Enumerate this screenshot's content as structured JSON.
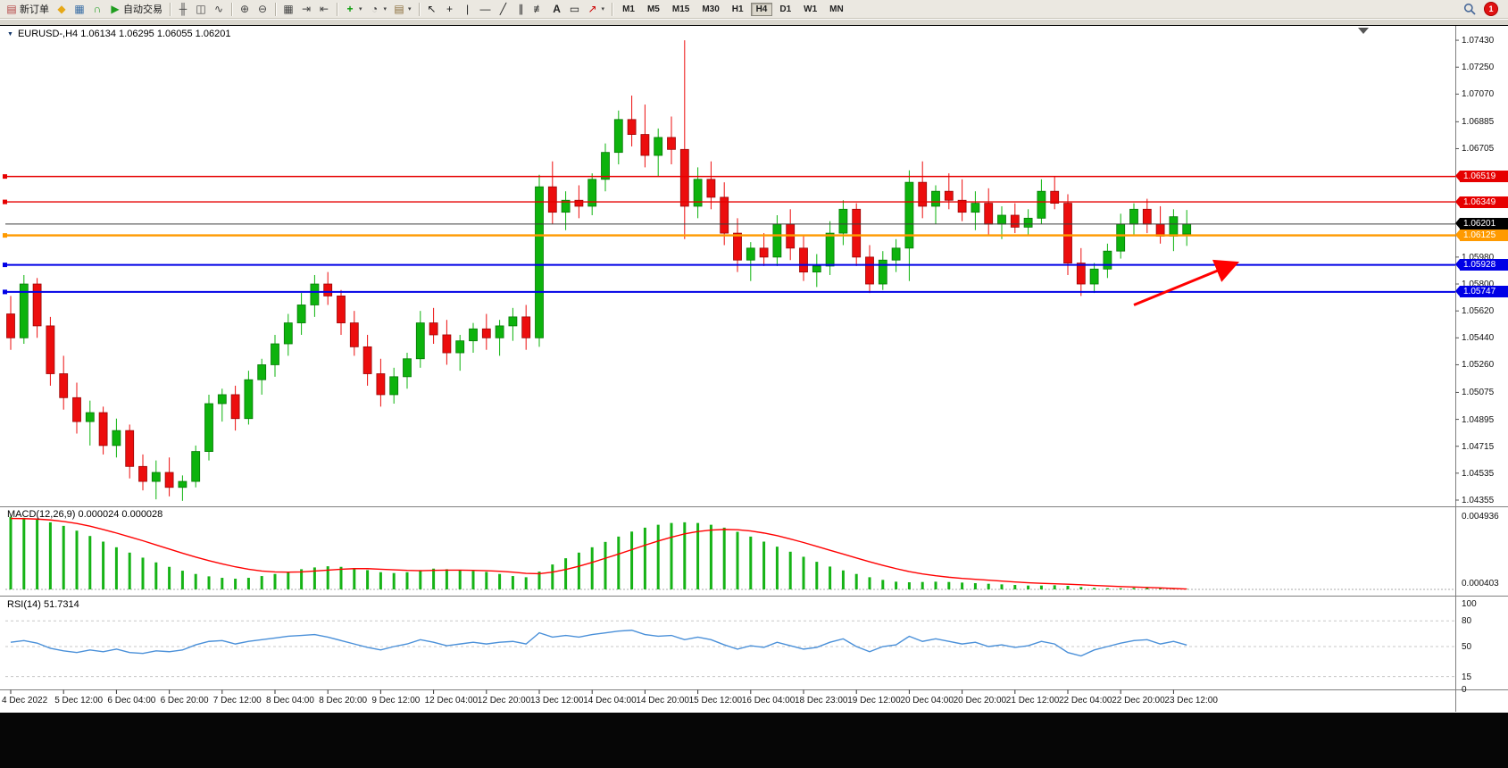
{
  "toolbar": {
    "groups": [
      {
        "name": "standard",
        "items": [
          {
            "name": "new-order",
            "label": "新订单",
            "icon": "new-order"
          },
          {
            "name": "metaeditor",
            "icon": "diamond"
          },
          {
            "name": "new-chart",
            "icon": "chart-window"
          },
          {
            "name": "market",
            "icon": "headphones"
          },
          {
            "name": "autotrading",
            "label": "自动交易",
            "icon": "play"
          }
        ]
      },
      {
        "name": "chart-types",
        "items": [
          {
            "name": "bar-chart",
            "icon": "bars"
          },
          {
            "name": "candlestick-chart",
            "icon": "candles"
          },
          {
            "name": "line-chart",
            "icon": "line"
          }
        ]
      },
      {
        "name": "zoom",
        "items": [
          {
            "name": "zoom-in",
            "icon": "zoom-in"
          },
          {
            "name": "zoom-out",
            "icon": "zoom-out"
          }
        ]
      },
      {
        "name": "windows",
        "items": [
          {
            "name": "tile-windows",
            "icon": "tile"
          },
          {
            "name": "auto-scroll",
            "icon": "auto-scroll"
          },
          {
            "name": "chart-shift",
            "icon": "chart-shift"
          }
        ]
      },
      {
        "name": "insert",
        "items": [
          {
            "name": "indicators",
            "icon": "indicator-plus",
            "dropdown": true
          },
          {
            "name": "periods",
            "icon": "clock",
            "dropdown": true
          },
          {
            "name": "templates",
            "icon": "template",
            "dropdown": true
          }
        ]
      },
      {
        "name": "objects",
        "items": [
          {
            "name": "cursor",
            "icon": "cursor"
          },
          {
            "name": "crosshair",
            "icon": "crosshair"
          },
          {
            "name": "vertical-line",
            "icon": "vertical-line"
          },
          {
            "name": "horizontal-line",
            "icon": "horizontal-line"
          },
          {
            "name": "trendline",
            "icon": "trendline"
          },
          {
            "name": "equidistant-channel",
            "icon": "channel"
          },
          {
            "name": "fibonacci",
            "icon": "fibonacci"
          },
          {
            "name": "text",
            "icon": "text"
          },
          {
            "name": "text-label",
            "icon": "label"
          },
          {
            "name": "arrows",
            "icon": "arrow",
            "dropdown": true
          }
        ]
      }
    ],
    "timeframes": [
      {
        "label": "M1"
      },
      {
        "label": "M5"
      },
      {
        "label": "M15"
      },
      {
        "label": "M30"
      },
      {
        "label": "H1"
      },
      {
        "label": "H4",
        "active": true
      },
      {
        "label": "D1"
      },
      {
        "label": "W1"
      },
      {
        "label": "MN"
      }
    ],
    "right": {
      "badge": "1"
    }
  },
  "chart": {
    "header_text": "EURUSD-,H4 1.06134 1.06295 1.06055 1.06201",
    "macd_label": "MACD(12,26,9) 0.000024 0.000028",
    "rsi_label": "RSI(14) 51.7314"
  },
  "chart_data": {
    "type": "candlestick",
    "symbol": "EURUSD-",
    "timeframe": "H4",
    "ohlc_header": {
      "open": 1.06134,
      "high": 1.06295,
      "low": 1.06055,
      "close": 1.06201
    },
    "price_axis": {
      "min": 1.04355,
      "max": 1.0743,
      "ticks": [
        1.0743,
        1.0725,
        1.0707,
        1.06885,
        1.06705,
        1.0598,
        1.058,
        1.0562,
        1.0544,
        1.0526,
        1.05075,
        1.04895,
        1.04715,
        1.04535,
        1.04355
      ]
    },
    "time_labels": [
      "4 Dec 2022",
      "5 Dec 12:00",
      "6 Dec 04:00",
      "6 Dec 20:00",
      "7 Dec 12:00",
      "8 Dec 04:00",
      "8 Dec 20:00",
      "9 Dec 12:00",
      "12 Dec 04:00",
      "12 Dec 20:00",
      "13 Dec 12:00",
      "14 Dec 04:00",
      "14 Dec 20:00",
      "15 Dec 12:00",
      "16 Dec 04:00",
      "18 Dec 23:00",
      "19 Dec 12:00",
      "20 Dec 04:00",
      "20 Dec 20:00",
      "21 Dec 12:00",
      "22 Dec 04:00",
      "22 Dec 20:00",
      "23 Dec 12:00"
    ],
    "candles": [
      [
        1.056,
        1.0572,
        1.0536,
        1.0544
      ],
      [
        1.0544,
        1.0586,
        1.054,
        1.058
      ],
      [
        1.058,
        1.0584,
        1.0544,
        1.0552
      ],
      [
        1.0552,
        1.0558,
        1.0512,
        1.052
      ],
      [
        1.052,
        1.0532,
        1.0496,
        1.0504
      ],
      [
        1.0504,
        1.0514,
        1.048,
        1.0488
      ],
      [
        1.0488,
        1.0502,
        1.0472,
        1.0494
      ],
      [
        1.0494,
        1.0498,
        1.0466,
        1.0472
      ],
      [
        1.0472,
        1.049,
        1.0464,
        1.0482
      ],
      [
        1.0482,
        1.0486,
        1.045,
        1.0458
      ],
      [
        1.0458,
        1.0466,
        1.0442,
        1.0448
      ],
      [
        1.0448,
        1.0462,
        1.0436,
        1.0454
      ],
      [
        1.0454,
        1.0464,
        1.0438,
        1.0444
      ],
      [
        1.0444,
        1.0452,
        1.0435,
        1.0448
      ],
      [
        1.0448,
        1.0472,
        1.0444,
        1.0468
      ],
      [
        1.0468,
        1.0506,
        1.0462,
        1.05
      ],
      [
        1.05,
        1.051,
        1.0488,
        1.0506
      ],
      [
        1.0506,
        1.0512,
        1.0482,
        1.049
      ],
      [
        1.049,
        1.0522,
        1.0486,
        1.0516
      ],
      [
        1.0516,
        1.053,
        1.0506,
        1.0526
      ],
      [
        1.0526,
        1.0546,
        1.0518,
        1.054
      ],
      [
        1.054,
        1.056,
        1.0532,
        1.0554
      ],
      [
        1.0554,
        1.0574,
        1.0546,
        1.0566
      ],
      [
        1.0566,
        1.0586,
        1.0558,
        1.058
      ],
      [
        1.058,
        1.0588,
        1.0566,
        1.0572
      ],
      [
        1.0572,
        1.0576,
        1.0546,
        1.0554
      ],
      [
        1.0554,
        1.0562,
        1.0532,
        1.0538
      ],
      [
        1.0538,
        1.0546,
        1.0512,
        1.052
      ],
      [
        1.052,
        1.053,
        1.0498,
        1.0506
      ],
      [
        1.0506,
        1.0524,
        1.05,
        1.0518
      ],
      [
        1.0518,
        1.0534,
        1.051,
        1.053
      ],
      [
        1.053,
        1.0562,
        1.0524,
        1.0554
      ],
      [
        1.0554,
        1.0564,
        1.054,
        1.0546
      ],
      [
        1.0546,
        1.0556,
        1.0526,
        1.0534
      ],
      [
        1.0534,
        1.0546,
        1.0522,
        1.0542
      ],
      [
        1.0542,
        1.0554,
        1.0534,
        1.055
      ],
      [
        1.055,
        1.056,
        1.0536,
        1.0544
      ],
      [
        1.0544,
        1.0556,
        1.0532,
        1.0552
      ],
      [
        1.0552,
        1.0564,
        1.0542,
        1.0558
      ],
      [
        1.0558,
        1.0566,
        1.0536,
        1.0544
      ],
      [
        1.0544,
        1.0653,
        1.0538,
        1.0645
      ],
      [
        1.0645,
        1.0662,
        1.062,
        1.0628
      ],
      [
        1.0628,
        1.0642,
        1.0616,
        1.0636
      ],
      [
        1.0636,
        1.0646,
        1.0624,
        1.0632
      ],
      [
        1.0632,
        1.0654,
        1.0626,
        1.065
      ],
      [
        1.065,
        1.0674,
        1.0642,
        1.0668
      ],
      [
        1.0668,
        1.0696,
        1.066,
        1.069
      ],
      [
        1.069,
        1.0706,
        1.0672,
        1.068
      ],
      [
        1.068,
        1.07,
        1.0658,
        1.0666
      ],
      [
        1.0666,
        1.0684,
        1.0652,
        1.0678
      ],
      [
        1.0678,
        1.0692,
        1.066,
        1.067
      ],
      [
        1.067,
        1.0743,
        1.061,
        1.0632
      ],
      [
        1.0632,
        1.0658,
        1.0624,
        1.065
      ],
      [
        1.065,
        1.0662,
        1.063,
        1.0638
      ],
      [
        1.0638,
        1.0648,
        1.0606,
        1.0614
      ],
      [
        1.0614,
        1.0624,
        1.0588,
        1.0596
      ],
      [
        1.0596,
        1.0608,
        1.0582,
        1.0604
      ],
      [
        1.0604,
        1.0614,
        1.0592,
        1.0598
      ],
      [
        1.0598,
        1.0626,
        1.0592,
        1.062
      ],
      [
        1.062,
        1.063,
        1.0596,
        1.0604
      ],
      [
        1.0604,
        1.0612,
        1.0582,
        1.0588
      ],
      [
        1.0588,
        1.06,
        1.0578,
        1.0592
      ],
      [
        1.0592,
        1.0622,
        1.0586,
        1.0614
      ],
      [
        1.0614,
        1.0636,
        1.0606,
        1.063
      ],
      [
        1.063,
        1.0634,
        1.0592,
        1.0598
      ],
      [
        1.0598,
        1.0606,
        1.0574,
        1.058
      ],
      [
        1.058,
        1.0602,
        1.0576,
        1.0596
      ],
      [
        1.0596,
        1.061,
        1.0588,
        1.0604
      ],
      [
        1.0604,
        1.0656,
        1.0582,
        1.0648
      ],
      [
        1.0648,
        1.0662,
        1.0624,
        1.0632
      ],
      [
        1.0632,
        1.0646,
        1.062,
        1.0642
      ],
      [
        1.0642,
        1.0654,
        1.063,
        1.0636
      ],
      [
        1.0636,
        1.065,
        1.0622,
        1.0628
      ],
      [
        1.0628,
        1.0642,
        1.0616,
        1.0634
      ],
      [
        1.0634,
        1.0644,
        1.0612,
        1.062
      ],
      [
        1.062,
        1.0632,
        1.061,
        1.0626
      ],
      [
        1.0626,
        1.0634,
        1.0614,
        1.0618
      ],
      [
        1.0618,
        1.063,
        1.0612,
        1.0624
      ],
      [
        1.0624,
        1.065,
        1.062,
        1.0642
      ],
      [
        1.0642,
        1.0652,
        1.063,
        1.0634
      ],
      [
        1.0634,
        1.064,
        1.0586,
        1.0594
      ],
      [
        1.0594,
        1.0604,
        1.0572,
        1.058
      ],
      [
        1.058,
        1.0594,
        1.0574,
        1.059
      ],
      [
        1.059,
        1.0607,
        1.0584,
        1.0602
      ],
      [
        1.0602,
        1.0627,
        1.0597,
        1.062
      ],
      [
        1.062,
        1.0634,
        1.0612,
        1.063
      ],
      [
        1.063,
        1.0637,
        1.0614,
        1.062
      ],
      [
        1.062,
        1.0632,
        1.0607,
        1.0612
      ],
      [
        1.0612,
        1.063,
        1.0602,
        1.0625
      ],
      [
        1.06134,
        1.06295,
        1.06055,
        1.06201
      ]
    ],
    "hlines": [
      {
        "name": "resistance-1",
        "price": 1.06519,
        "color": "#e60000",
        "width": 1.4
      },
      {
        "name": "resistance-2",
        "price": 1.06349,
        "color": "#e60000",
        "width": 1.4
      },
      {
        "name": "pivot",
        "price": 1.06125,
        "color": "#ff9a00",
        "width": 2.4
      },
      {
        "name": "support-1",
        "price": 1.05928,
        "color": "#0000e6",
        "width": 2
      },
      {
        "name": "support-2",
        "price": 1.05747,
        "color": "#0000e6",
        "width": 2
      }
    ],
    "current_price": {
      "value": 1.06201,
      "line_color": "#3c3c3c",
      "box_color": "#000000"
    },
    "annotations": [
      {
        "type": "arrow",
        "from_candle": 85,
        "from_price": 1.0566,
        "to_candle": 92.6,
        "to_price": 1.05935,
        "color": "#ff0000"
      }
    ],
    "indicators": {
      "macd": {
        "name": "MACD",
        "params": [
          12,
          26,
          9
        ],
        "value_main": 2.4e-05,
        "value_signal": 2.8e-05,
        "scale_max": 0.004936,
        "scale_mid": 0.000403,
        "histogram": [
          0.0049,
          0.00482,
          0.0047,
          0.00452,
          0.00428,
          0.00396,
          0.0036,
          0.00322,
          0.00284,
          0.00248,
          0.00214,
          0.00182,
          0.00152,
          0.00126,
          0.00104,
          0.00088,
          0.00078,
          0.00072,
          0.00078,
          0.0009,
          0.00104,
          0.0012,
          0.00136,
          0.00148,
          0.00156,
          0.00152,
          0.00144,
          0.0013,
          0.00116,
          0.0011,
          0.00116,
          0.0013,
          0.0014,
          0.00136,
          0.00128,
          0.00124,
          0.00118,
          0.00104,
          0.0009,
          0.00082,
          0.0012,
          0.00168,
          0.0021,
          0.00248,
          0.00284,
          0.0032,
          0.00356,
          0.0039,
          0.00416,
          0.00436,
          0.00448,
          0.00452,
          0.00448,
          0.00436,
          0.00416,
          0.00388,
          0.00356,
          0.00322,
          0.00288,
          0.00254,
          0.0022,
          0.00186,
          0.00154,
          0.00128,
          0.00104,
          0.00082,
          0.00064,
          0.00052,
          0.00048,
          0.0005,
          0.00052,
          0.0005,
          0.00046,
          0.00042,
          0.00038,
          0.00034,
          0.0003,
          0.00026,
          0.00026,
          0.00028,
          0.00024,
          0.00016,
          0.0001,
          8e-05,
          8e-05,
          0.0001,
          0.00012,
          0.0001,
          6e-05,
          2.4e-05
        ],
        "signal": [
          0.00478,
          0.00477,
          0.00474,
          0.00468,
          0.00458,
          0.00444,
          0.00426,
          0.00404,
          0.0038,
          0.00354,
          0.00328,
          0.003,
          0.00272,
          0.00244,
          0.00218,
          0.00194,
          0.00172,
          0.00152,
          0.00136,
          0.00124,
          0.00118,
          0.00116,
          0.00118,
          0.00124,
          0.0013,
          0.00136,
          0.0014,
          0.0014,
          0.00136,
          0.00132,
          0.00128,
          0.00126,
          0.00128,
          0.0013,
          0.0013,
          0.00128,
          0.00126,
          0.00122,
          0.00116,
          0.00108,
          0.00106,
          0.00116,
          0.00134,
          0.00156,
          0.00182,
          0.0021,
          0.00238,
          0.00268,
          0.00298,
          0.00326,
          0.00352,
          0.00374,
          0.0039,
          0.004,
          0.00404,
          0.00402,
          0.00394,
          0.0038,
          0.00362,
          0.0034,
          0.00316,
          0.0029,
          0.00264,
          0.00238,
          0.00212,
          0.00186,
          0.00162,
          0.0014,
          0.0012,
          0.00104,
          0.00092,
          0.00082,
          0.00074,
          0.00068,
          0.00062,
          0.00056,
          0.0005,
          0.00045,
          0.00041,
          0.00038,
          0.00035,
          0.00031,
          0.00027,
          0.00023,
          0.00019,
          0.00016,
          0.00013,
          0.0001,
          6e-05,
          2.8e-05
        ]
      },
      "rsi": {
        "name": "RSI",
        "params": [
          14
        ],
        "value": 51.7314,
        "levels": [
          100,
          80,
          50,
          15,
          0
        ],
        "values": [
          55,
          57,
          54,
          48,
          45,
          43,
          46,
          44,
          47,
          43,
          42,
          45,
          44,
          46,
          52,
          56,
          57,
          53,
          56,
          58,
          60,
          62,
          63,
          64,
          61,
          57,
          53,
          49,
          46,
          50,
          53,
          58,
          55,
          51,
          53,
          55,
          53,
          55,
          56,
          53,
          66,
          61,
          63,
          61,
          64,
          66,
          68,
          69,
          64,
          62,
          63,
          58,
          61,
          58,
          52,
          47,
          51,
          49,
          55,
          51,
          47,
          49,
          55,
          59,
          50,
          44,
          50,
          52,
          62,
          56,
          59,
          56,
          53,
          55,
          50,
          52,
          49,
          51,
          56,
          53,
          43,
          39,
          46,
          50,
          54,
          57,
          58,
          53,
          56,
          51.73
        ]
      }
    },
    "colors": {
      "bull": "#0db30d",
      "bull_border": "#067806",
      "bear": "#ec0d0d",
      "bear_border": "#9a0505",
      "macd_hist": "#16b316",
      "macd_signal": "#ff0000",
      "rsi_line": "#4a90d9"
    }
  }
}
